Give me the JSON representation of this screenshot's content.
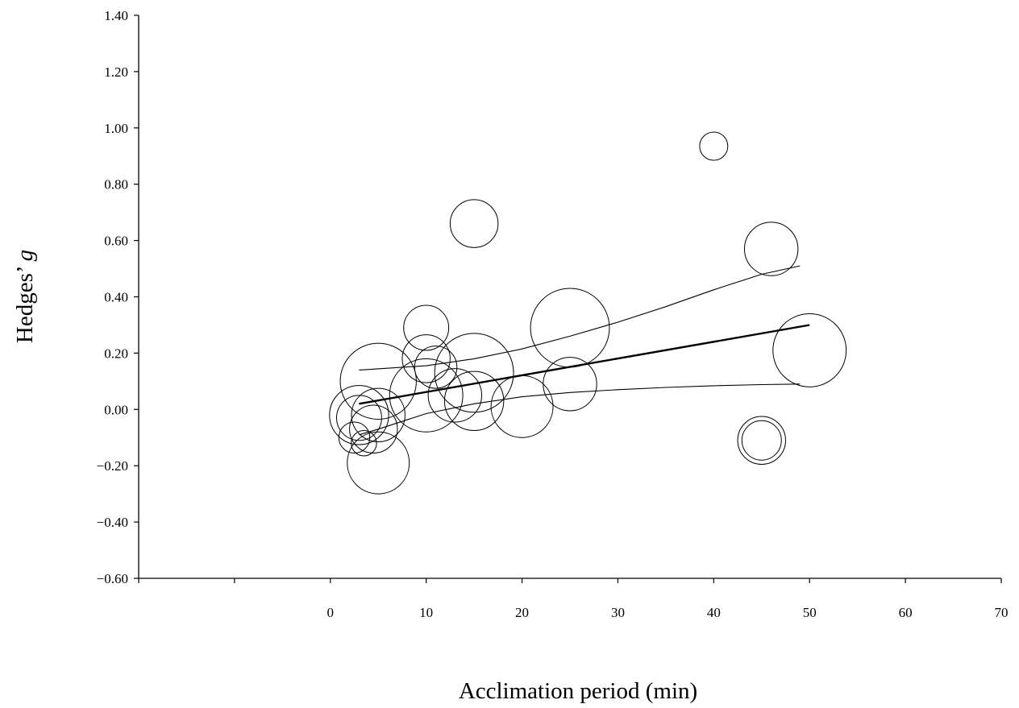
{
  "chart_data": {
    "type": "scatter",
    "title": "",
    "xlabel": "Acclimation period (min)",
    "ylabel_prefix": "Hedges’ ",
    "ylabel_italic": "g",
    "xlim": [
      -20,
      70
    ],
    "ylim": [
      -0.6,
      1.4
    ],
    "x_ticks": [
      -20,
      -10,
      0,
      10,
      20,
      30,
      40,
      50,
      60,
      70
    ],
    "x_tick_labels": [
      "",
      "",
      "0",
      "10",
      "20",
      "30",
      "40",
      "50",
      "60",
      "70"
    ],
    "y_ticks": [
      -0.6,
      -0.4,
      -0.2,
      0,
      0.2,
      0.4,
      0.6,
      0.8,
      1.0,
      1.2,
      1.4
    ],
    "y_tick_labels": [
      "−0.60",
      "−0.40",
      "−0.20",
      "0.00",
      "0.20",
      "0.40",
      "0.60",
      "0.80",
      "1.00",
      "1.20",
      "1.40"
    ],
    "grid": false,
    "legend": "none",
    "marker": "open circle, area proportional to study weight",
    "points": [
      {
        "x": 3,
        "y": -0.02,
        "r": 0.105
      },
      {
        "x": 3,
        "y": -0.03,
        "r": 0.08
      },
      {
        "x": 2.5,
        "y": -0.1,
        "r": 0.055
      },
      {
        "x": 3.5,
        "y": -0.12,
        "r": 0.045
      },
      {
        "x": 5,
        "y": 0.1,
        "r": 0.135
      },
      {
        "x": 5,
        "y": -0.02,
        "r": 0.095
      },
      {
        "x": 4.5,
        "y": -0.07,
        "r": 0.085
      },
      {
        "x": 5,
        "y": -0.19,
        "r": 0.11
      },
      {
        "x": 10,
        "y": 0.29,
        "r": 0.08
      },
      {
        "x": 10,
        "y": 0.18,
        "r": 0.085
      },
      {
        "x": 10,
        "y": 0.05,
        "r": 0.13
      },
      {
        "x": 11,
        "y": 0.15,
        "r": 0.075
      },
      {
        "x": 13,
        "y": 0.05,
        "r": 0.095
      },
      {
        "x": 15,
        "y": 0.13,
        "r": 0.14
      },
      {
        "x": 15,
        "y": 0.03,
        "r": 0.105
      },
      {
        "x": 15,
        "y": 0.66,
        "r": 0.085
      },
      {
        "x": 20,
        "y": 0.01,
        "r": 0.11
      },
      {
        "x": 25,
        "y": 0.29,
        "r": 0.14
      },
      {
        "x": 25,
        "y": 0.09,
        "r": 0.095
      },
      {
        "x": 40,
        "y": 0.935,
        "r": 0.05
      },
      {
        "x": 45,
        "y": -0.11,
        "r": 0.085
      },
      {
        "x": 45,
        "y": -0.11,
        "r": 0.07
      },
      {
        "x": 46,
        "y": 0.57,
        "r": 0.095
      },
      {
        "x": 50,
        "y": 0.21,
        "r": 0.13
      }
    ],
    "regression": {
      "fit": {
        "x": [
          3,
          50
        ],
        "y": [
          0.02,
          0.3
        ]
      },
      "upper_ci": {
        "x": [
          3,
          10,
          15,
          20,
          25,
          30,
          35,
          40,
          45,
          49
        ],
        "y": [
          0.14,
          0.155,
          0.18,
          0.215,
          0.26,
          0.31,
          0.365,
          0.425,
          0.48,
          0.51
        ]
      },
      "lower_ci": {
        "x": [
          3,
          5,
          10,
          15,
          20,
          25,
          30,
          35,
          40,
          45,
          49
        ],
        "y": [
          -0.09,
          -0.07,
          -0.015,
          0.02,
          0.045,
          0.06,
          0.07,
          0.078,
          0.084,
          0.088,
          0.09
        ]
      }
    }
  }
}
